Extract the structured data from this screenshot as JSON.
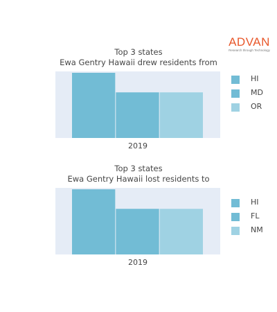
{
  "logo": {
    "word": "ADVAN",
    "tagline": "Research through Technology"
  },
  "colors": {
    "bar1": "#72bcd5",
    "bar2": "#72bcd5",
    "bar3": "#9fd2e3",
    "plot_bg": "#e5ecf6",
    "logo": "#e8572a"
  },
  "chart_data": [
    {
      "type": "bar",
      "title_lines": [
        "Top 3 states",
        "Ewa Gentry Hawaii drew residents from"
      ],
      "categories": [
        "2019"
      ],
      "series": [
        {
          "name": "HI",
          "values": [
            1.0
          ]
        },
        {
          "name": "MD",
          "values": [
            0.7
          ]
        },
        {
          "name": "OR",
          "values": [
            0.7
          ]
        }
      ],
      "ylim": [
        0,
        1.0
      ],
      "xlabel": "",
      "ylabel": "",
      "grid": false,
      "legend": "right"
    },
    {
      "type": "bar",
      "title_lines": [
        "Top 3 states",
        "Ewa Gentry Hawaii lost residents to"
      ],
      "categories": [
        "2019"
      ],
      "series": [
        {
          "name": "HI",
          "values": [
            1.0
          ]
        },
        {
          "name": "FL",
          "values": [
            0.7
          ]
        },
        {
          "name": "NM",
          "values": [
            0.7
          ]
        }
      ],
      "ylim": [
        0,
        1.0
      ],
      "xlabel": "",
      "ylabel": "",
      "grid": false,
      "legend": "right"
    }
  ]
}
